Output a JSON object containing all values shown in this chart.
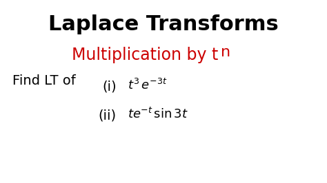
{
  "title": "Laplace Transforms",
  "subtitle_text": "Multiplication by t",
  "subtitle_sup": "n",
  "find_label": "Find LT of",
  "item_i_label": "(i)",
  "item_ii_label": "(ii)",
  "bg_color": "#ffffff",
  "title_color": "#000000",
  "subtitle_color": "#cc0000",
  "body_color": "#000000",
  "title_fontsize": 22,
  "subtitle_fontsize": 17,
  "sup_fontsize": 16,
  "find_fontsize": 14,
  "math_fontsize": 13
}
